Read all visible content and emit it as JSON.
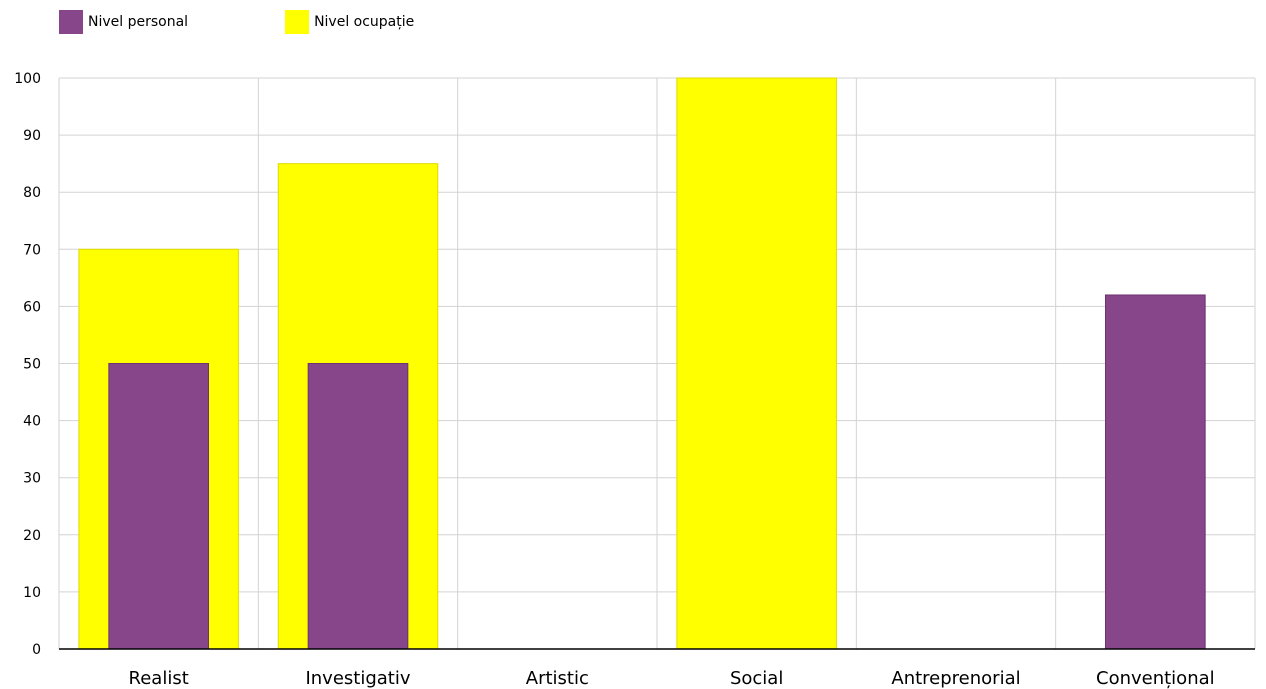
{
  "legend": [
    {
      "label": "Nivel personal",
      "color": "#87458a"
    },
    {
      "label": "Nivel ocupație",
      "color": "#ffff00"
    }
  ],
  "chart_data": {
    "type": "bar",
    "title": "",
    "xlabel": "",
    "ylabel": "",
    "ylim": [
      0,
      100
    ],
    "yticks": [
      0,
      10,
      20,
      30,
      40,
      50,
      60,
      70,
      80,
      90,
      100
    ],
    "grid": true,
    "legend_position": "top-left",
    "categories": [
      "Realist",
      "Investigativ",
      "Artistic",
      "Social",
      "Antreprenorial",
      "Convențional"
    ],
    "series": [
      {
        "name": "Nivel ocupație",
        "color": "#ffff00",
        "values": [
          70,
          85,
          0,
          100,
          0,
          0
        ]
      },
      {
        "name": "Nivel personal",
        "color": "#87458a",
        "values": [
          50,
          50,
          0,
          0,
          0,
          62
        ]
      }
    ]
  }
}
